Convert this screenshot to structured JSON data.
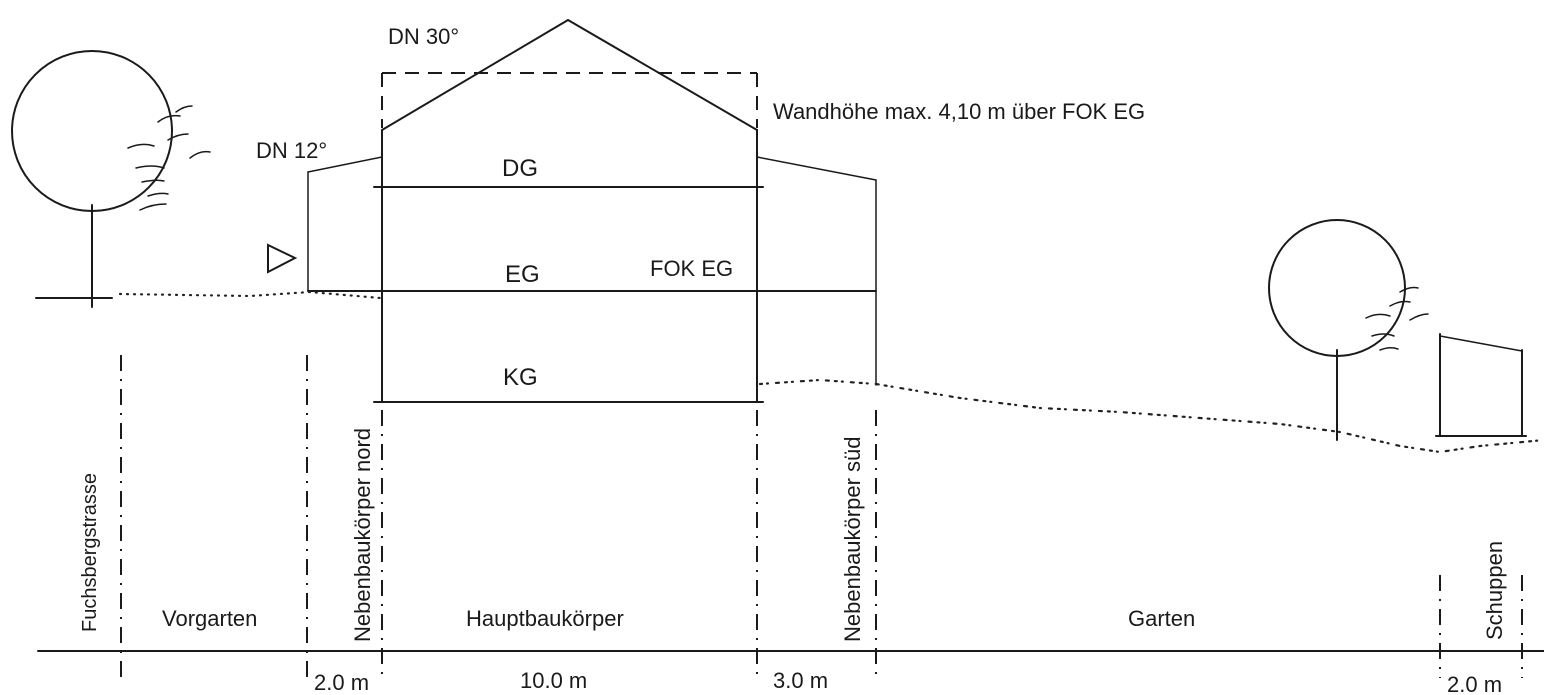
{
  "section": {
    "roof_pitch_main": "DN 30°",
    "roof_pitch_side": "DN 12°",
    "wall_height_note": "Wandhöhe max. 4,10 m über FOK EG",
    "floor_dg": "DG",
    "floor_eg": "EG",
    "floor_kg": "KG",
    "fok_label": "FOK EG"
  },
  "zones": {
    "street": "Fuchsbergstrasse",
    "front_garden": "Vorgarten",
    "annex_north": "Nebenbaukörper nord",
    "main_building": "Hauptbaukörper",
    "annex_south": "Nebenbaukörper süd",
    "garden": "Garten",
    "shed": "Schuppen"
  },
  "dimensions": {
    "north_width": "2.0 m",
    "main_width": "10.0 m",
    "south_width": "3.0 m",
    "shed_width": "2.0 m"
  },
  "colors": {
    "ink": "#1a1a1a",
    "paper": "#ffffff"
  }
}
